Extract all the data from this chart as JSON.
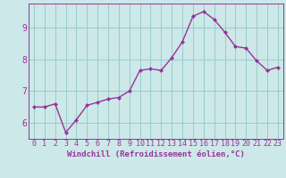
{
  "x": [
    0,
    1,
    2,
    3,
    4,
    5,
    6,
    7,
    8,
    9,
    10,
    11,
    12,
    13,
    14,
    15,
    16,
    17,
    18,
    19,
    20,
    21,
    22,
    23
  ],
  "y": [
    6.5,
    6.5,
    6.6,
    5.7,
    6.1,
    6.55,
    6.65,
    6.75,
    6.8,
    7.0,
    7.65,
    7.7,
    7.65,
    8.05,
    8.55,
    9.35,
    9.5,
    9.25,
    8.85,
    8.4,
    8.35,
    7.95,
    7.65,
    7.75
  ],
  "line_color": "#993399",
  "marker": "D",
  "marker_size": 2.0,
  "line_width": 1.0,
  "bg_color": "#cce8e8",
  "grid_color": "#99cccc",
  "xlabel": "Windchill (Refroidissement éolien,°C)",
  "xlabel_color": "#993399",
  "tick_color": "#993399",
  "ylim": [
    5.5,
    9.75
  ],
  "xlim": [
    -0.5,
    23.5
  ],
  "yticks": [
    6,
    7,
    8,
    9
  ],
  "xticks": [
    0,
    1,
    2,
    3,
    4,
    5,
    6,
    7,
    8,
    9,
    10,
    11,
    12,
    13,
    14,
    15,
    16,
    17,
    18,
    19,
    20,
    21,
    22,
    23
  ],
  "xtick_labels": [
    "0",
    "1",
    "2",
    "3",
    "4",
    "5",
    "6",
    "7",
    "8",
    "9",
    "10",
    "11",
    "12",
    "13",
    "14",
    "15",
    "16",
    "17",
    "18",
    "19",
    "20",
    "21",
    "22",
    "23"
  ],
  "spine_color": "#993399",
  "font_size_xlabel": 6.5,
  "font_size_ticks": 6.0
}
